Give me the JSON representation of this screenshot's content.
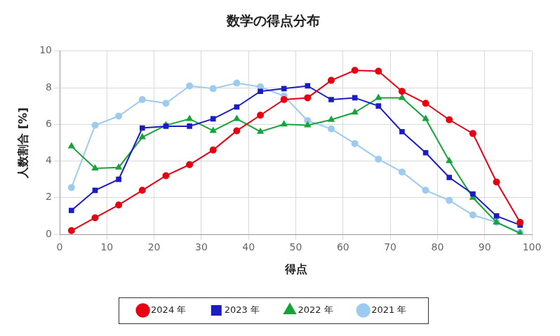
{
  "chart_data": {
    "type": "line",
    "title": "数学の得点分布",
    "x_label": "得点",
    "y_label": "人数割合 [%]",
    "x": [
      2.5,
      7.5,
      12.5,
      17.5,
      22.5,
      27.5,
      32.5,
      37.5,
      42.5,
      47.5,
      52.5,
      57.5,
      62.5,
      67.5,
      72.5,
      77.5,
      82.5,
      87.5,
      92.5,
      97.5
    ],
    "series": [
      {
        "name": "2024 年",
        "color": "#e60012",
        "marker": "circle",
        "line_style": "solid",
        "values": [
          0.2,
          0.9,
          1.6,
          2.4,
          3.2,
          3.8,
          4.6,
          5.65,
          6.5,
          7.35,
          7.45,
          8.4,
          8.95,
          8.9,
          7.8,
          7.15,
          6.25,
          5.5,
          2.85,
          0.65
        ]
      },
      {
        "name": "2023 年",
        "color": "#1c1cc4",
        "marker": "square",
        "line_style": "solid",
        "values": [
          1.3,
          2.4,
          3.0,
          5.8,
          5.9,
          5.9,
          6.3,
          6.95,
          7.8,
          7.95,
          8.1,
          7.35,
          7.45,
          7.0,
          5.6,
          4.45,
          3.1,
          2.2,
          1.0,
          0.5
        ]
      },
      {
        "name": "2022 年",
        "color": "#16a33c",
        "marker": "triangle",
        "line_style": "solid",
        "values": [
          4.8,
          3.6,
          3.65,
          5.3,
          5.95,
          6.3,
          5.65,
          6.3,
          5.6,
          6.0,
          5.95,
          6.25,
          6.65,
          7.45,
          7.45,
          6.3,
          4.0,
          2.0,
          0.65,
          0.05
        ]
      },
      {
        "name": "2021 年",
        "color": "#9dcbf0",
        "marker": "circle",
        "line_style": "solid",
        "values": [
          2.55,
          5.95,
          6.45,
          7.35,
          7.15,
          8.1,
          7.95,
          8.25,
          8.05,
          7.55,
          6.2,
          5.75,
          4.95,
          4.1,
          3.4,
          2.4,
          1.85,
          1.05,
          0.65,
          0.1
        ]
      }
    ],
    "xlim": [
      0,
      100
    ],
    "xticks": [
      0,
      10,
      20,
      30,
      40,
      50,
      60,
      70,
      80,
      90,
      100
    ],
    "ylim": [
      0,
      10
    ],
    "yticks": [
      0,
      2,
      4,
      6,
      8,
      10
    ],
    "grid": true,
    "legend": "bottom"
  }
}
